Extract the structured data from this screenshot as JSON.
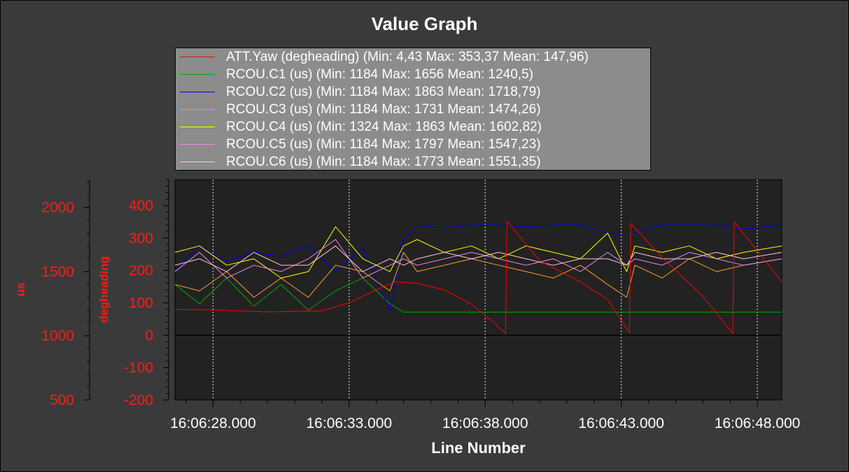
{
  "chart_data": {
    "type": "line",
    "title": "Value Graph",
    "xlabel": "Line Number",
    "ylabel_left": "us",
    "ylabel_right": "degheading",
    "x_range": [
      "16:06:26.6",
      "16:06:48.9"
    ],
    "x_ticks": [
      "16:06:28.000",
      "16:06:33.000",
      "16:06:38.000",
      "16:06:43.000",
      "16:06:48.000"
    ],
    "y_deg_range": [
      -200,
      480
    ],
    "y_deg_ticks": [
      "400",
      "300",
      "200",
      "100",
      "0",
      "-100",
      "-200"
    ],
    "y_us_range": [
      500,
      2216
    ],
    "y_us_ticks": [
      "2000",
      "1500",
      "1000",
      "500"
    ],
    "grid": true,
    "legend_placement": "top",
    "x_times": [
      26.6,
      27.5,
      28.5,
      29.5,
      30.5,
      31.5,
      32.5,
      33.5,
      34.5,
      35.0,
      35.5,
      36.5,
      37.5,
      38.5,
      39.5,
      40.5,
      41.5,
      42.5,
      43.2,
      43.5,
      44.5,
      45.5,
      46.5,
      47.5,
      48.9
    ],
    "series": [
      {
        "name": "ATT.Yaw (degheading)",
        "legend_text": "ATT.Yaw (degheading) (Min: 4,43 Max: 353,37 Mean: 147,96)",
        "color": "#ff0000",
        "axis": "deg",
        "times": [
          26.6,
          28.0,
          30.0,
          32.0,
          33.0,
          34.0,
          34.7,
          35.5,
          36.5,
          37.5,
          38.3,
          38.75,
          38.8,
          40.0,
          41.5,
          42.5,
          43.3,
          43.35,
          44.5,
          46.0,
          47.1,
          47.15,
          48.9
        ],
        "values": [
          80,
          78,
          72,
          75,
          100,
          140,
          165,
          160,
          140,
          95,
          40,
          5,
          352,
          230,
          165,
          110,
          8,
          345,
          240,
          120,
          5,
          350,
          165
        ]
      },
      {
        "name": "RCOU.C1 (us)",
        "legend_text": "RCOU.C1 (us) (Min: 1184 Max: 1656 Mean: 1240,5)",
        "color": "#00aa00",
        "axis": "us",
        "values": [
          1400,
          1250,
          1450,
          1230,
          1400,
          1200,
          1350,
          1450,
          1250,
          1184,
          1184,
          1184,
          1184,
          1184,
          1184,
          1184,
          1184,
          1184,
          1184,
          1184,
          1184,
          1184,
          1184,
          1184,
          1184
        ]
      },
      {
        "name": "RCOU.C2 (us)",
        "legend_text": "RCOU.C2 (us) (Min: 1184 Max: 1863 Mean: 1718,79)",
        "color": "#0000ee",
        "axis": "us",
        "values": [
          1500,
          1700,
          1580,
          1650,
          1620,
          1700,
          1500,
          1680,
          1200,
          1750,
          1860,
          1840,
          1863,
          1863,
          1850,
          1863,
          1863,
          1800,
          1780,
          1800,
          1863,
          1863,
          1863,
          1830,
          1863
        ]
      },
      {
        "name": "RCOU.C3 (us)",
        "legend_text": "RCOU.C3 (us) (Min: 1184 Max: 1731 Mean: 1474,26)",
        "color": "#ffa030",
        "axis": "us",
        "values": [
          1400,
          1350,
          1500,
          1300,
          1450,
          1300,
          1550,
          1500,
          1350,
          1650,
          1500,
          1550,
          1600,
          1550,
          1500,
          1450,
          1550,
          1400,
          1300,
          1550,
          1450,
          1600,
          1500,
          1550,
          1600
        ]
      },
      {
        "name": "RCOU.C4 (us)",
        "legend_text": "RCOU.C4 (us) (Min: 1324 Max: 1863 Mean: 1602,82)",
        "color": "#ffff00",
        "axis": "us",
        "values": [
          1650,
          1700,
          1550,
          1600,
          1450,
          1500,
          1850,
          1600,
          1500,
          1700,
          1750,
          1650,
          1700,
          1600,
          1700,
          1650,
          1600,
          1800,
          1500,
          1700,
          1650,
          1700,
          1600,
          1650,
          1700
        ]
      },
      {
        "name": "RCOU.C5 (us)",
        "legend_text": "RCOU.C5 (us) (Min: 1184 Max: 1797 Mean: 1547,23)",
        "color": "#ee88ee",
        "axis": "us",
        "values": [
          1500,
          1650,
          1450,
          1550,
          1500,
          1600,
          1750,
          1450,
          1550,
          1600,
          1550,
          1600,
          1650,
          1600,
          1550,
          1600,
          1500,
          1650,
          1550,
          1600,
          1550,
          1650,
          1600,
          1550,
          1600
        ]
      },
      {
        "name": "RCOU.C6 (us)",
        "legend_text": "RCOU.C6 (us) (Min: 1184 Max: 1773 Mean: 1551,35)",
        "color": "#ffc8d2",
        "axis": "us",
        "values": [
          1550,
          1600,
          1500,
          1650,
          1550,
          1550,
          1700,
          1500,
          1600,
          1550,
          1600,
          1650,
          1600,
          1650,
          1600,
          1550,
          1600,
          1600,
          1550,
          1650,
          1600,
          1600,
          1650,
          1600,
          1650
        ]
      }
    ]
  }
}
